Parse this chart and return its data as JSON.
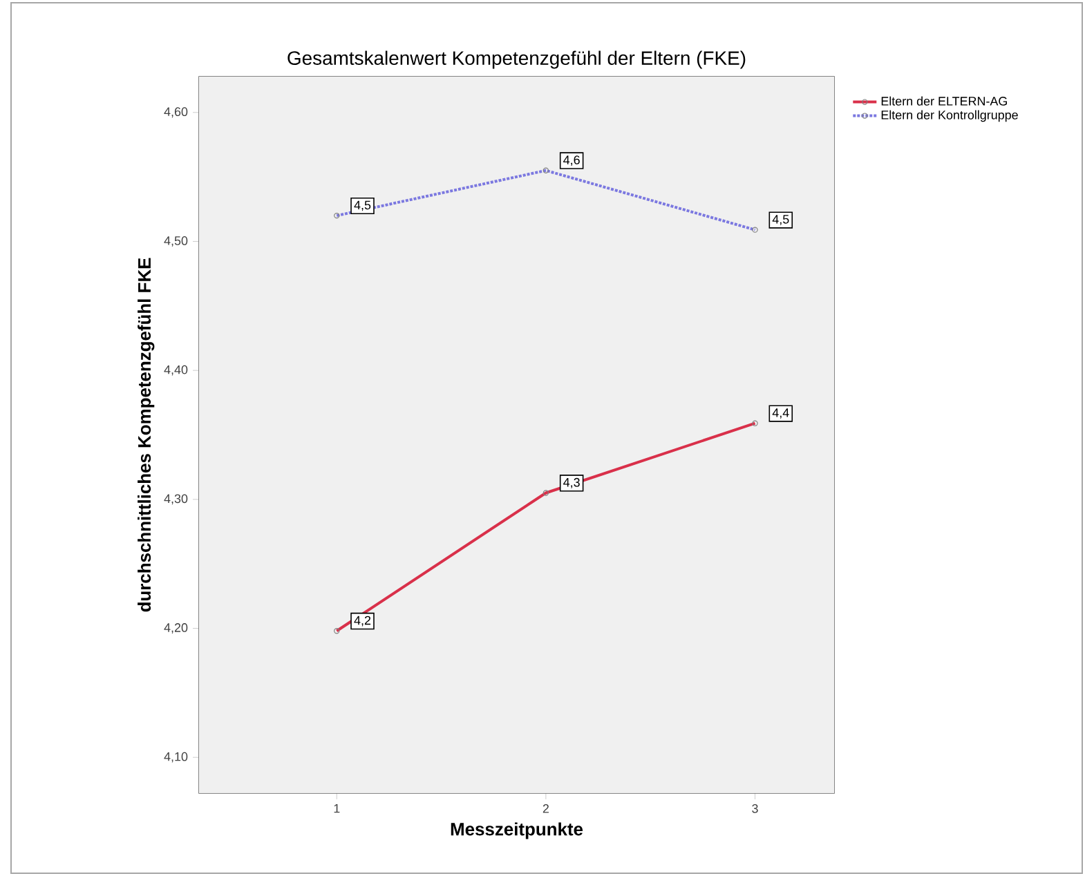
{
  "chart_data": {
    "type": "line",
    "title": "Gesamtskalenwert Kompetenzgefühl der Eltern (FKE)",
    "xlabel": "Messzeitpunkte",
    "ylabel": "durchschnittliches Kompetenzgefühl FKE",
    "x": [
      1,
      2,
      3
    ],
    "series": [
      {
        "name": "Eltern der ELTERN-AG",
        "color": "#d9304a",
        "line_style": "solid",
        "values": [
          4.198,
          4.305,
          4.359
        ],
        "value_labels": [
          "4,2",
          "4,3",
          "4,4"
        ]
      },
      {
        "name": "Eltern der Kontrollgruppe",
        "color": "#7b78e0",
        "line_style": "dotted",
        "values": [
          4.52,
          4.555,
          4.509
        ],
        "value_labels": [
          "4,5",
          "4,6",
          "4,5"
        ]
      }
    ],
    "xlim": [
      0.34,
      3.38
    ],
    "xticks": [
      1,
      2,
      3
    ],
    "ylim": [
      4.072,
      4.628
    ],
    "yticks": [
      {
        "value": 4.1,
        "label": "4,10"
      },
      {
        "value": 4.2,
        "label": "4,20"
      },
      {
        "value": 4.3,
        "label": "4,30"
      },
      {
        "value": 4.4,
        "label": "4,40"
      },
      {
        "value": 4.5,
        "label": "4,50"
      },
      {
        "value": 4.6,
        "label": "4,60"
      }
    ],
    "marker": "circle",
    "legend": "top right",
    "grid": false
  }
}
